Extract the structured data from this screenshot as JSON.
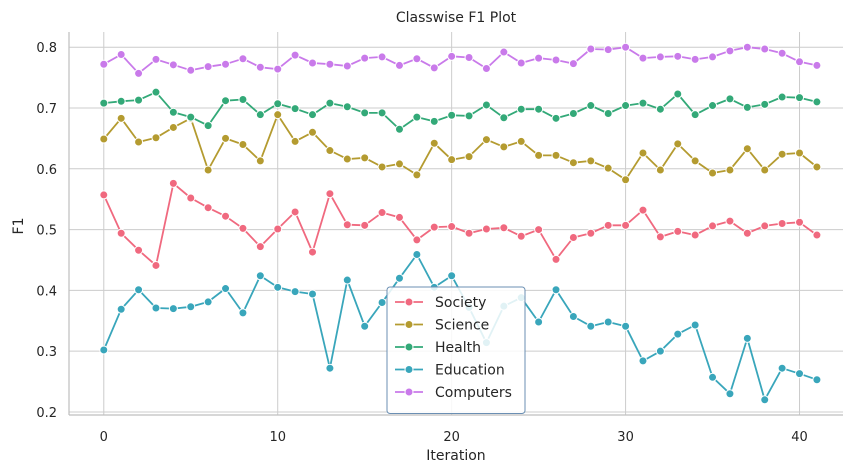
{
  "chart_data": {
    "type": "line",
    "title": "Classwise F1 Plot",
    "xlabel": "Iteration",
    "ylabel": "F1",
    "xlim": [
      -2,
      42.5
    ],
    "ylim": [
      0.195,
      0.825
    ],
    "xticks": [
      0,
      10,
      20,
      30,
      40
    ],
    "yticks": [
      0.2,
      0.3,
      0.4,
      0.5,
      0.6,
      0.7,
      0.8
    ],
    "xtick_labels": [
      "0",
      "10",
      "20",
      "30",
      "40"
    ],
    "ytick_labels": [
      "0.2",
      "0.3",
      "0.4",
      "0.5",
      "0.6",
      "0.7",
      "0.8"
    ],
    "grid": true,
    "legend_position": "bottom-center",
    "x": [
      0,
      1,
      2,
      3,
      4,
      5,
      6,
      7,
      8,
      9,
      10,
      11,
      12,
      13,
      14,
      15,
      16,
      17,
      18,
      19,
      20,
      21,
      22,
      23,
      24,
      25,
      26,
      27,
      28,
      29,
      30,
      31,
      32,
      33,
      34,
      35,
      36,
      37,
      38,
      39,
      40,
      41
    ],
    "series": [
      {
        "name": "Society",
        "color": "#f0697f",
        "values": [
          0.557,
          0.494,
          0.466,
          0.441,
          0.576,
          0.552,
          0.536,
          0.522,
          0.502,
          0.472,
          0.501,
          0.529,
          0.463,
          0.559,
          0.508,
          0.507,
          0.528,
          0.52,
          0.483,
          0.504,
          0.505,
          0.494,
          0.501,
          0.503,
          0.489,
          0.5,
          0.451,
          0.487,
          0.494,
          0.507,
          0.507,
          0.532,
          0.488,
          0.497,
          0.491,
          0.506,
          0.514,
          0.494,
          0.506,
          0.51,
          0.512,
          0.491
        ]
      },
      {
        "name": "Science",
        "color": "#b49b30",
        "values": [
          0.649,
          0.683,
          0.644,
          0.651,
          0.668,
          0.683,
          0.598,
          0.65,
          0.64,
          0.613,
          0.689,
          0.645,
          0.66,
          0.63,
          0.616,
          0.618,
          0.603,
          0.608,
          0.59,
          0.642,
          0.615,
          0.62,
          0.648,
          0.636,
          0.645,
          0.622,
          0.622,
          0.61,
          0.613,
          0.601,
          0.582,
          0.626,
          0.598,
          0.641,
          0.613,
          0.593,
          0.598,
          0.633,
          0.598,
          0.624,
          0.626,
          0.603
        ]
      },
      {
        "name": "Health",
        "color": "#33a978",
        "values": [
          0.708,
          0.711,
          0.713,
          0.726,
          0.693,
          0.685,
          0.671,
          0.712,
          0.714,
          0.689,
          0.707,
          0.699,
          0.689,
          0.708,
          0.702,
          0.692,
          0.692,
          0.665,
          0.685,
          0.678,
          0.688,
          0.687,
          0.705,
          0.684,
          0.698,
          0.698,
          0.683,
          0.691,
          0.704,
          0.691,
          0.704,
          0.708,
          0.698,
          0.723,
          0.689,
          0.704,
          0.715,
          0.701,
          0.706,
          0.718,
          0.717,
          0.71
        ]
      },
      {
        "name": "Education",
        "color": "#39a6bb",
        "values": [
          0.302,
          0.369,
          0.401,
          0.371,
          0.37,
          0.373,
          0.381,
          0.403,
          0.363,
          0.424,
          0.405,
          0.398,
          0.394,
          0.272,
          0.417,
          0.341,
          0.38,
          0.42,
          0.459,
          0.405,
          0.424,
          0.372,
          0.314,
          0.374,
          0.388,
          0.348,
          0.401,
          0.357,
          0.341,
          0.348,
          0.341,
          0.284,
          0.3,
          0.328,
          0.343,
          0.257,
          0.23,
          0.321,
          0.22,
          0.272,
          0.263,
          0.253
        ]
      },
      {
        "name": "Computers",
        "color": "#c97aea",
        "values": [
          0.772,
          0.788,
          0.757,
          0.78,
          0.771,
          0.762,
          0.768,
          0.772,
          0.781,
          0.767,
          0.764,
          0.787,
          0.774,
          0.772,
          0.769,
          0.782,
          0.784,
          0.77,
          0.781,
          0.766,
          0.785,
          0.783,
          0.765,
          0.792,
          0.774,
          0.782,
          0.779,
          0.773,
          0.797,
          0.796,
          0.8,
          0.782,
          0.784,
          0.785,
          0.78,
          0.784,
          0.794,
          0.8,
          0.797,
          0.79,
          0.776,
          0.77
        ]
      }
    ]
  }
}
